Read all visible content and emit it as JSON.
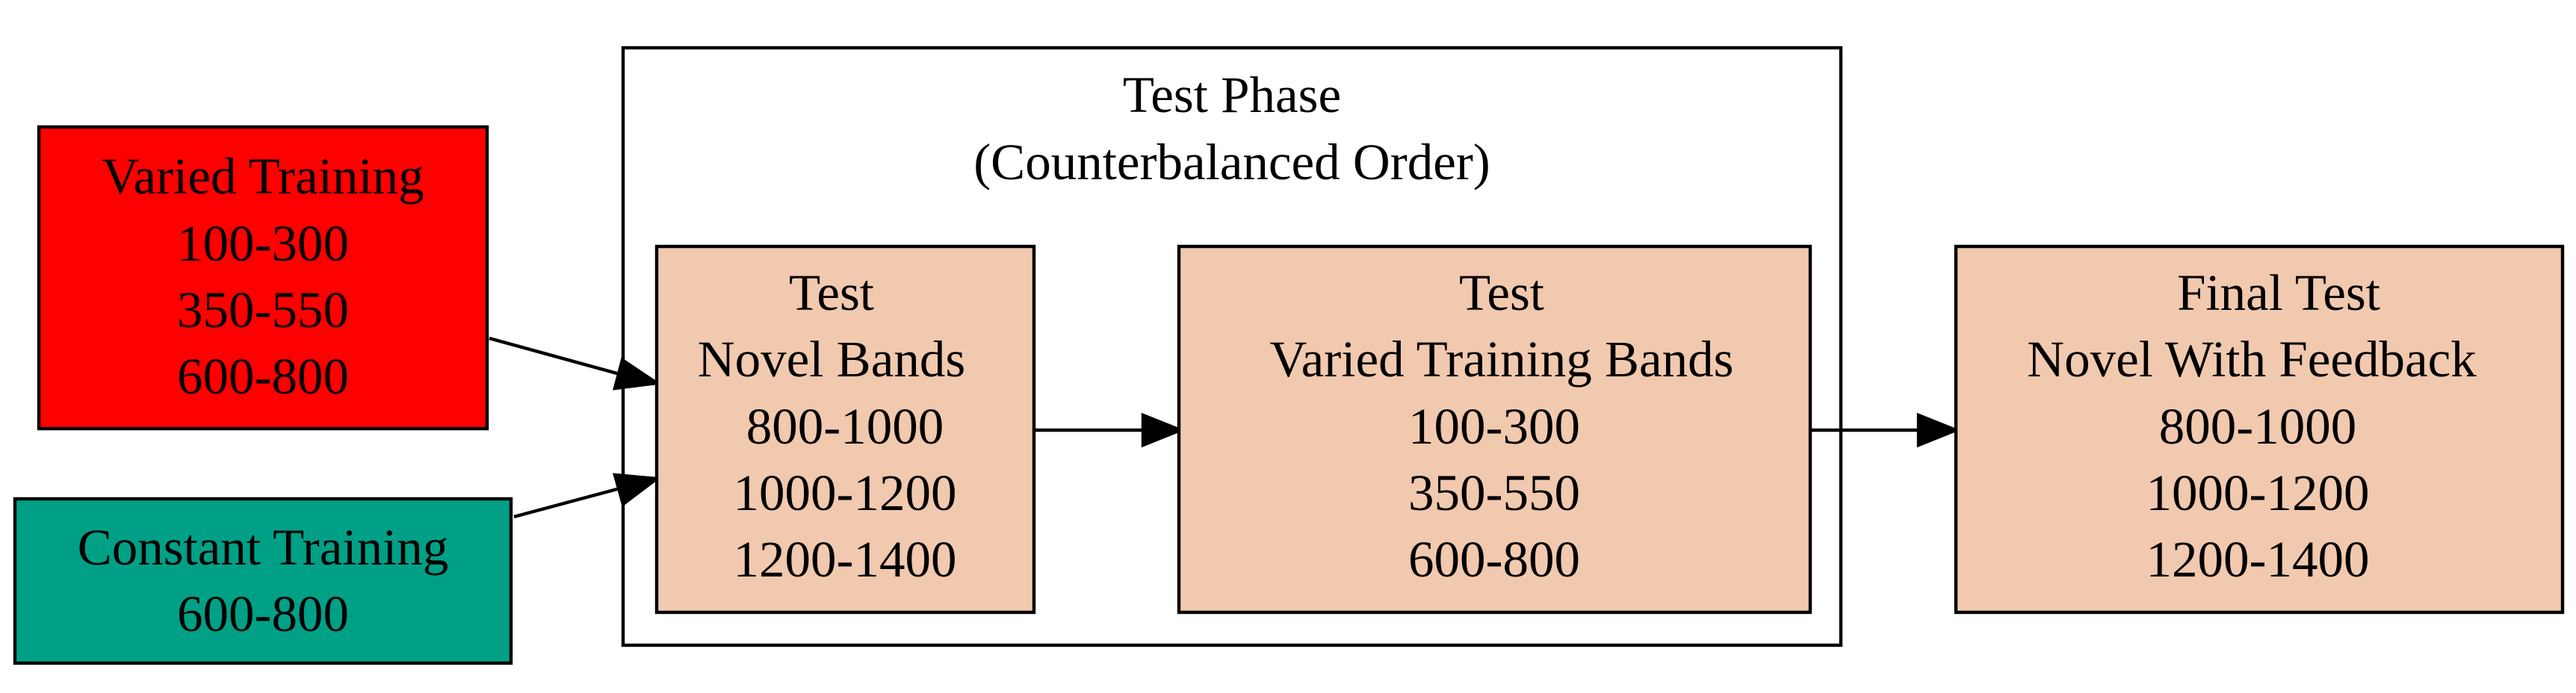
{
  "colors": {
    "varied_training_fill": "#ff0000",
    "constant_training_fill": "#00a087",
    "test_node_fill": "#f1c9ae",
    "stroke": "#000000",
    "background": "#ffffff"
  },
  "cluster": {
    "title": "Test Phase",
    "subtitle": "(Counterbalanced Order)"
  },
  "nodes": {
    "varied_training": {
      "lines": [
        "Varied Training",
        "100-300",
        "350-550",
        "600-800"
      ]
    },
    "constant_training": {
      "lines": [
        "Constant Training",
        "600-800"
      ]
    },
    "test_novel": {
      "lines": [
        "Test",
        "Novel Bands",
        "800-1000",
        "1000-1200",
        "1200-1400"
      ]
    },
    "test_varied": {
      "lines": [
        "Test",
        "Varied Training Bands",
        "100-300",
        "350-550",
        "600-800"
      ]
    },
    "final_test": {
      "lines": [
        "Final Test",
        "Novel With Feedback",
        "800-1000",
        "1000-1200",
        "1200-1400"
      ]
    }
  },
  "edges": [
    {
      "from": "varied_training",
      "to": "test_novel"
    },
    {
      "from": "constant_training",
      "to": "test_novel"
    },
    {
      "from": "test_novel",
      "to": "test_varied"
    },
    {
      "from": "test_varied",
      "to": "final_test"
    }
  ]
}
